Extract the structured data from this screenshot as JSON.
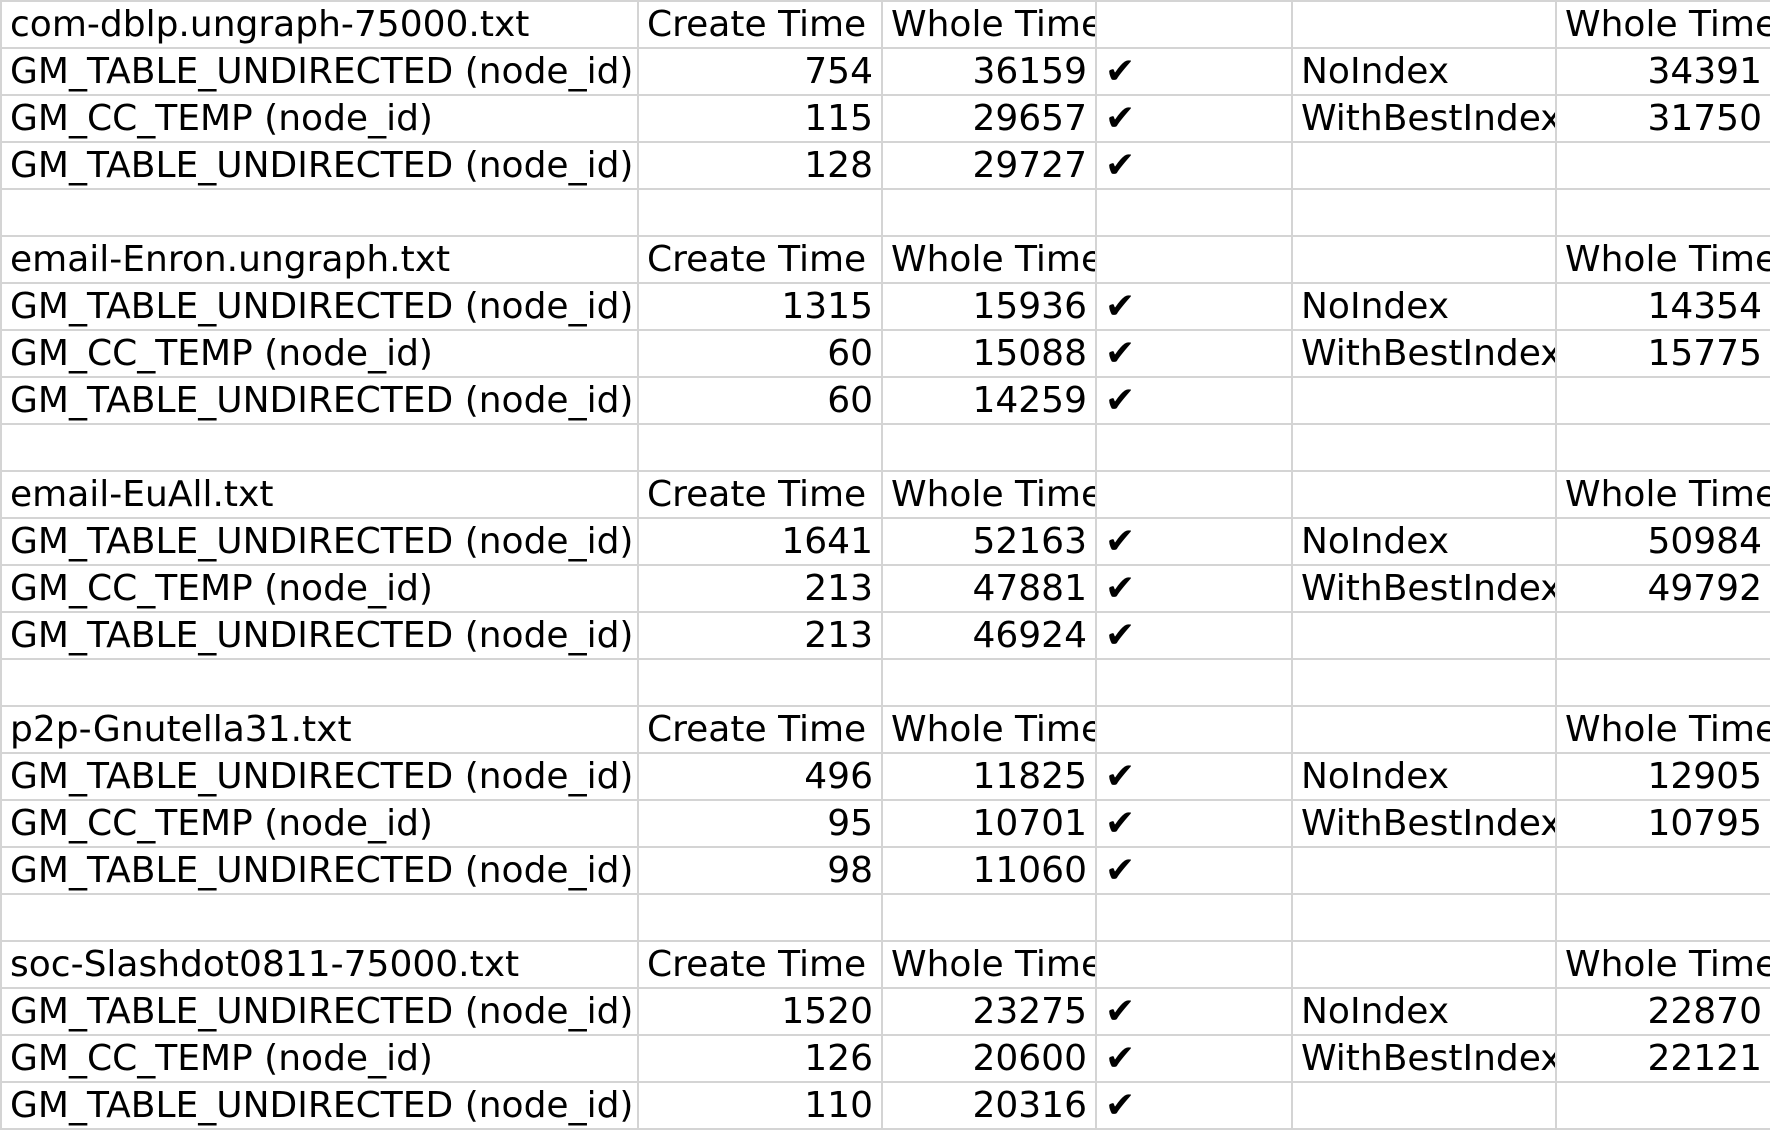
{
  "headers": {
    "create": "Create Time",
    "whole": "Whole Time",
    "right_whole": "Whole Time"
  },
  "check_mark": "✔",
  "groups": [
    {
      "dataset": "com-dblp.ungraph-75000.txt",
      "rows": [
        {
          "name": "GM_TABLE_UNDIRECTED (node_id)",
          "create": "754",
          "whole": "36159",
          "check": true,
          "label": "NoIndex",
          "value": "34391"
        },
        {
          "name": "GM_CC_TEMP (node_id)",
          "create": "115",
          "whole": "29657",
          "check": true,
          "label": "WithBestIndex",
          "value": "31750"
        },
        {
          "name": "GM_TABLE_UNDIRECTED (node_id)",
          "create": "128",
          "whole": "29727",
          "check": true,
          "label": "",
          "value": ""
        }
      ]
    },
    {
      "dataset": "email-Enron.ungraph.txt",
      "rows": [
        {
          "name": "GM_TABLE_UNDIRECTED (node_id)",
          "create": "1315",
          "whole": "15936",
          "check": true,
          "label": "NoIndex",
          "value": "14354"
        },
        {
          "name": "GM_CC_TEMP (node_id)",
          "create": "60",
          "whole": "15088",
          "check": true,
          "label": "WithBestIndex",
          "value": "15775"
        },
        {
          "name": "GM_TABLE_UNDIRECTED (node_id)",
          "create": "60",
          "whole": "14259",
          "check": true,
          "label": "",
          "value": ""
        }
      ]
    },
    {
      "dataset": "email-EuAll.txt",
      "rows": [
        {
          "name": "GM_TABLE_UNDIRECTED (node_id)",
          "create": "1641",
          "whole": "52163",
          "check": true,
          "label": "NoIndex",
          "value": "50984"
        },
        {
          "name": "GM_CC_TEMP (node_id)",
          "create": "213",
          "whole": "47881",
          "check": true,
          "label": "WithBestIndex",
          "value": "49792"
        },
        {
          "name": "GM_TABLE_UNDIRECTED (node_id)",
          "create": "213",
          "whole": "46924",
          "check": true,
          "label": "",
          "value": ""
        }
      ]
    },
    {
      "dataset": "p2p-Gnutella31.txt",
      "rows": [
        {
          "name": "GM_TABLE_UNDIRECTED (node_id)",
          "create": "496",
          "whole": "11825",
          "check": true,
          "label": "NoIndex",
          "value": "12905"
        },
        {
          "name": "GM_CC_TEMP (node_id)",
          "create": "95",
          "whole": "10701",
          "check": true,
          "label": "WithBestIndex",
          "value": "10795"
        },
        {
          "name": "GM_TABLE_UNDIRECTED (node_id)",
          "create": "98",
          "whole": "11060",
          "check": true,
          "label": "",
          "value": ""
        }
      ]
    },
    {
      "dataset": "soc-Slashdot0811-75000.txt",
      "rows": [
        {
          "name": "GM_TABLE_UNDIRECTED (node_id)",
          "create": "1520",
          "whole": "23275",
          "check": true,
          "label": "NoIndex",
          "value": "22870"
        },
        {
          "name": "GM_CC_TEMP (node_id)",
          "create": "126",
          "whole": "20600",
          "check": true,
          "label": "WithBestIndex",
          "value": "22121"
        },
        {
          "name": "GM_TABLE_UNDIRECTED (node_id)",
          "create": "110",
          "whole": "20316",
          "check": true,
          "label": "",
          "value": ""
        }
      ]
    }
  ]
}
